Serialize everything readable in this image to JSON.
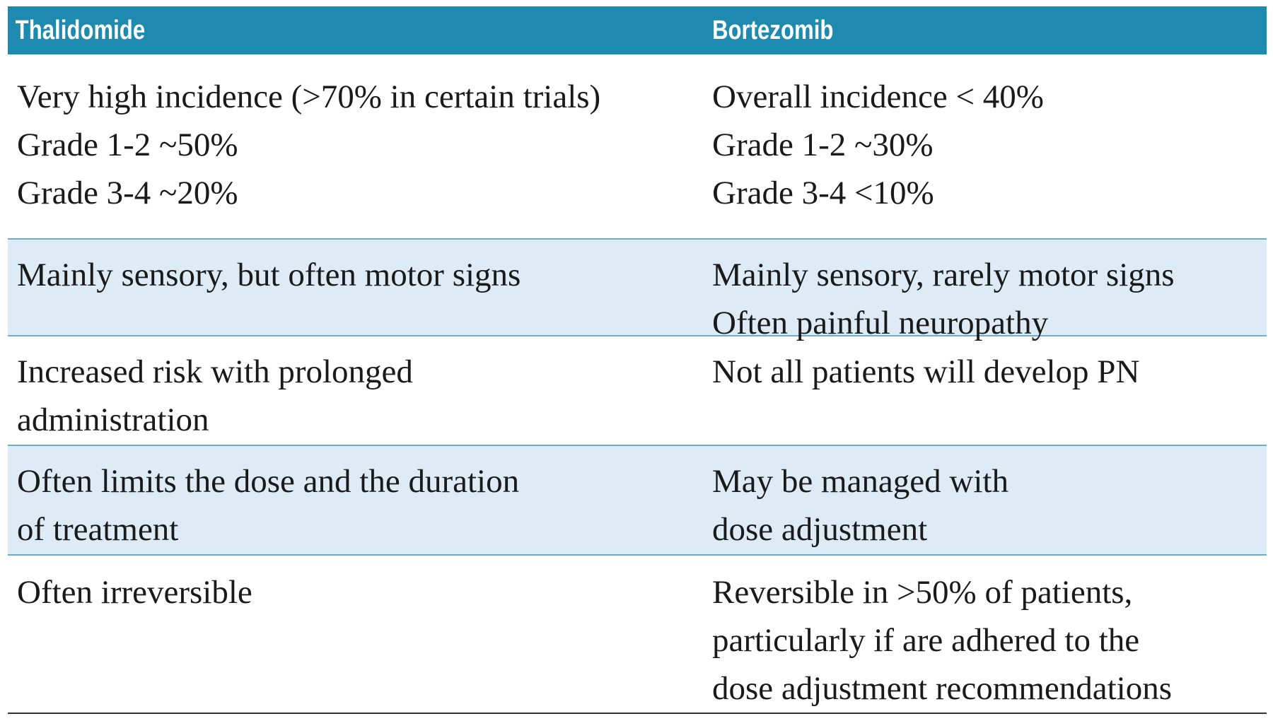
{
  "table": {
    "header": [
      "Thalidomide",
      "Bortezomib"
    ],
    "rows": [
      [
        [
          "Very high incidence (>70% in certain trials)",
          "Grade 1-2 ~50%",
          "Grade 3-4 ~20%"
        ],
        [
          "Overall incidence < 40%",
          "Grade 1-2 ~30%",
          "Grade 3-4 <10%"
        ]
      ],
      [
        [
          "Mainly sensory, but often motor signs"
        ],
        [
          "Mainly sensory, rarely motor signs",
          "Often painful neuropathy"
        ]
      ],
      [
        [
          "Increased risk with prolonged",
          "administration"
        ],
        [
          "Not all patients will develop PN"
        ]
      ],
      [
        [
          "Often limits the dose and the duration",
          "of treatment"
        ],
        [
          "May be managed with",
          "dose adjustment"
        ]
      ],
      [
        [
          "Often irreversible"
        ],
        [
          "Reversible in >50% of patients,",
          "particularly if are adhered to the",
          "dose adjustment recommendations"
        ]
      ]
    ]
  }
}
